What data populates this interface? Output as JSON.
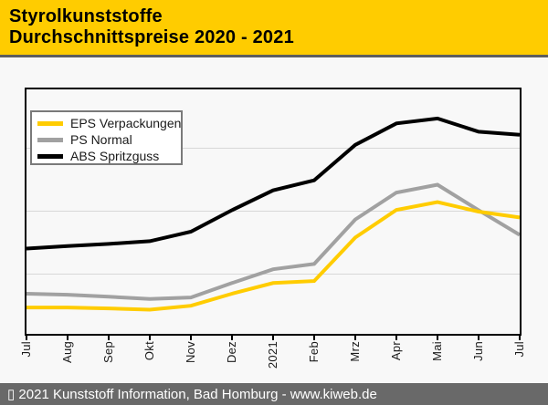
{
  "header": {
    "title_line1": "Styrolkunststoffe",
    "title_line2": "Durchschnittspreise 2020 - 2021"
  },
  "footer": {
    "text": "▯ 2021 Kunststoff Information, Bad Homburg - www.kiweb.de"
  },
  "colors": {
    "header_bg": "#FFCC00",
    "header_text": "#000000",
    "divider": "#5E5E5E",
    "page_bg": "#F8F8F8",
    "plot_border": "#000000",
    "gridline": "#D8D8D8",
    "footer_bg": "#696969",
    "footer_text": "#FFFFFF"
  },
  "chart_data": {
    "type": "line",
    "title": "Styrolkunststoffe Durchschnittspreise 2020 - 2021",
    "x_tick_labels": [
      "Jul",
      "Aug",
      "Sep",
      "Okt",
      "Nov",
      "Dez",
      "2021",
      "Feb",
      "Mrz",
      "Apr",
      "Mai",
      "Jun",
      "Jul"
    ],
    "y_axis_labels_visible": false,
    "value_encoding": "percent of plot height above bottom axis (chart shows no y-axis tick labels)",
    "series": [
      {
        "name": "EPS Verpackungen",
        "color": "#FFCC00",
        "values_pct": [
          10.8,
          10.8,
          10.4,
          9.9,
          11.5,
          16.4,
          20.8,
          21.6,
          39.4,
          50.7,
          53.9,
          50.0,
          47.6
        ]
      },
      {
        "name": "PS Normal",
        "color": "#A1A1A1",
        "values_pct": [
          16.4,
          16.0,
          15.2,
          14.3,
          14.9,
          20.8,
          26.4,
          28.6,
          46.8,
          57.8,
          61.0,
          50.6,
          40.5
        ]
      },
      {
        "name": "ABS Spritzguss",
        "color": "#000000",
        "values_pct": [
          34.9,
          35.9,
          36.8,
          37.9,
          41.8,
          50.6,
          58.7,
          62.8,
          77.3,
          86.1,
          88.1,
          82.7,
          81.4
        ]
      }
    ],
    "draw_order": [
      1,
      0,
      2
    ],
    "gridlines_pct_from_top": [
      24.0,
      49.8,
      75.5
    ],
    "legend_position": "top-left",
    "grid": "horizontal-only"
  }
}
